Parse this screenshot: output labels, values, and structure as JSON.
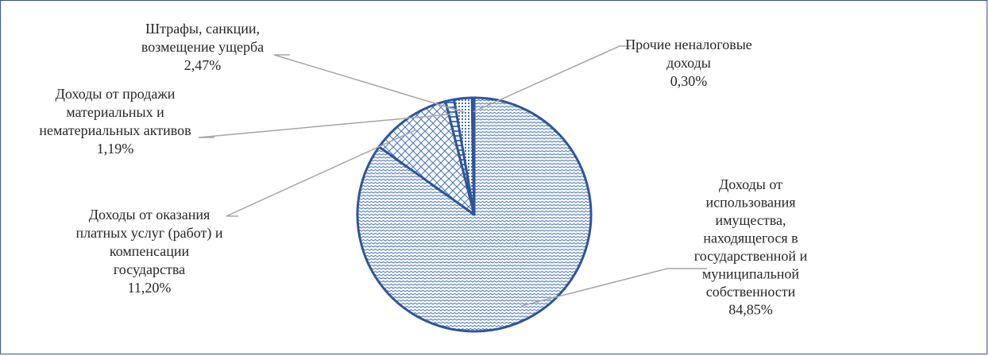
{
  "chart_data": {
    "type": "pie",
    "title": "",
    "colors": {
      "border": "#2f5597",
      "fill_pattern": "#4472c4",
      "leader": "#a6a6a6",
      "text": "#262626"
    },
    "slices": [
      {
        "name": "Доходы от использования имущества, находящегося в государственной и муниципальной собственности",
        "label_lines": [
          "Доходы от",
          "использования",
          "имущества,",
          "находящегося в",
          "государственной и",
          "муниципальной",
          "собственности"
        ],
        "value": 84.85,
        "value_label": "84,85%",
        "pattern": "waves"
      },
      {
        "name": "Доходы от оказания платных услуг (работ) и компенсации государства",
        "label_lines": [
          "Доходы от оказания",
          "платных услуг (работ) и",
          "компенсации",
          "государства"
        ],
        "value": 11.2,
        "value_label": "11,20%",
        "pattern": "crosshatch"
      },
      {
        "name": "Доходы от продажи материальных и нематериальных активов",
        "label_lines": [
          "Доходы от продажи",
          "материальных и",
          "нематериальных активов"
        ],
        "value": 1.19,
        "value_label": "1,19%",
        "pattern": "dashes"
      },
      {
        "name": "Штрафы, санкции, возмещение ущерба",
        "label_lines": [
          "Штрафы, санкции,",
          "возмещение ущерба"
        ],
        "value": 2.47,
        "value_label": "2,47%",
        "pattern": "dots"
      },
      {
        "name": "Прочие неналоговые доходы",
        "label_lines": [
          "Прочие неналоговые",
          "доходы"
        ],
        "value": 0.3,
        "value_label": "0,30%",
        "pattern": "grid"
      }
    ]
  }
}
